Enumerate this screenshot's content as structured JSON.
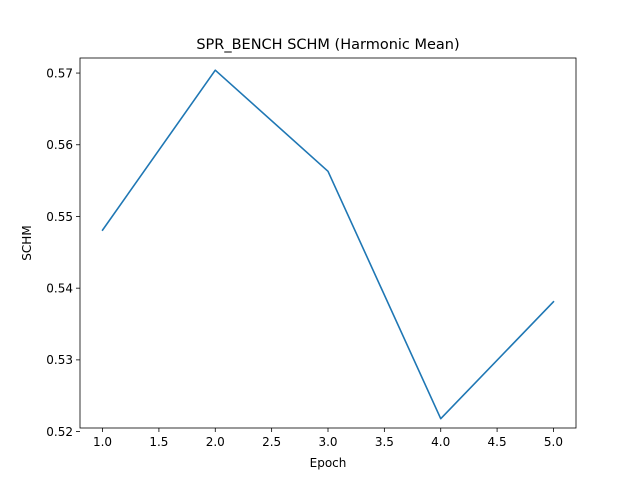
{
  "chart_data": {
    "type": "line",
    "title": "SPR_BENCH SCHM (Harmonic Mean)",
    "xlabel": "Epoch",
    "ylabel": "SCHM",
    "x": [
      1.0,
      2.0,
      3.0,
      4.0,
      5.0
    ],
    "series": [
      {
        "values": [
          0.5481,
          0.5704,
          0.5563,
          0.5218,
          0.5381
        ],
        "color": "#1f77b4"
      }
    ],
    "xlim": [
      0.8,
      5.2
    ],
    "ylim": [
      0.5205,
      0.5721
    ],
    "xticks": [
      1.0,
      1.5,
      2.0,
      2.5,
      3.0,
      3.5,
      4.0,
      4.5,
      5.0
    ],
    "xtick_labels": [
      "1.0",
      "1.5",
      "2.0",
      "2.5",
      "3.0",
      "3.5",
      "4.0",
      "4.5",
      "5.0"
    ],
    "yticks": [
      0.52,
      0.53,
      0.54,
      0.55,
      0.56,
      0.57
    ],
    "ytick_labels": [
      "0.52",
      "0.53",
      "0.54",
      "0.55",
      "0.56",
      "0.57"
    ],
    "grid": false,
    "legend": "none"
  }
}
